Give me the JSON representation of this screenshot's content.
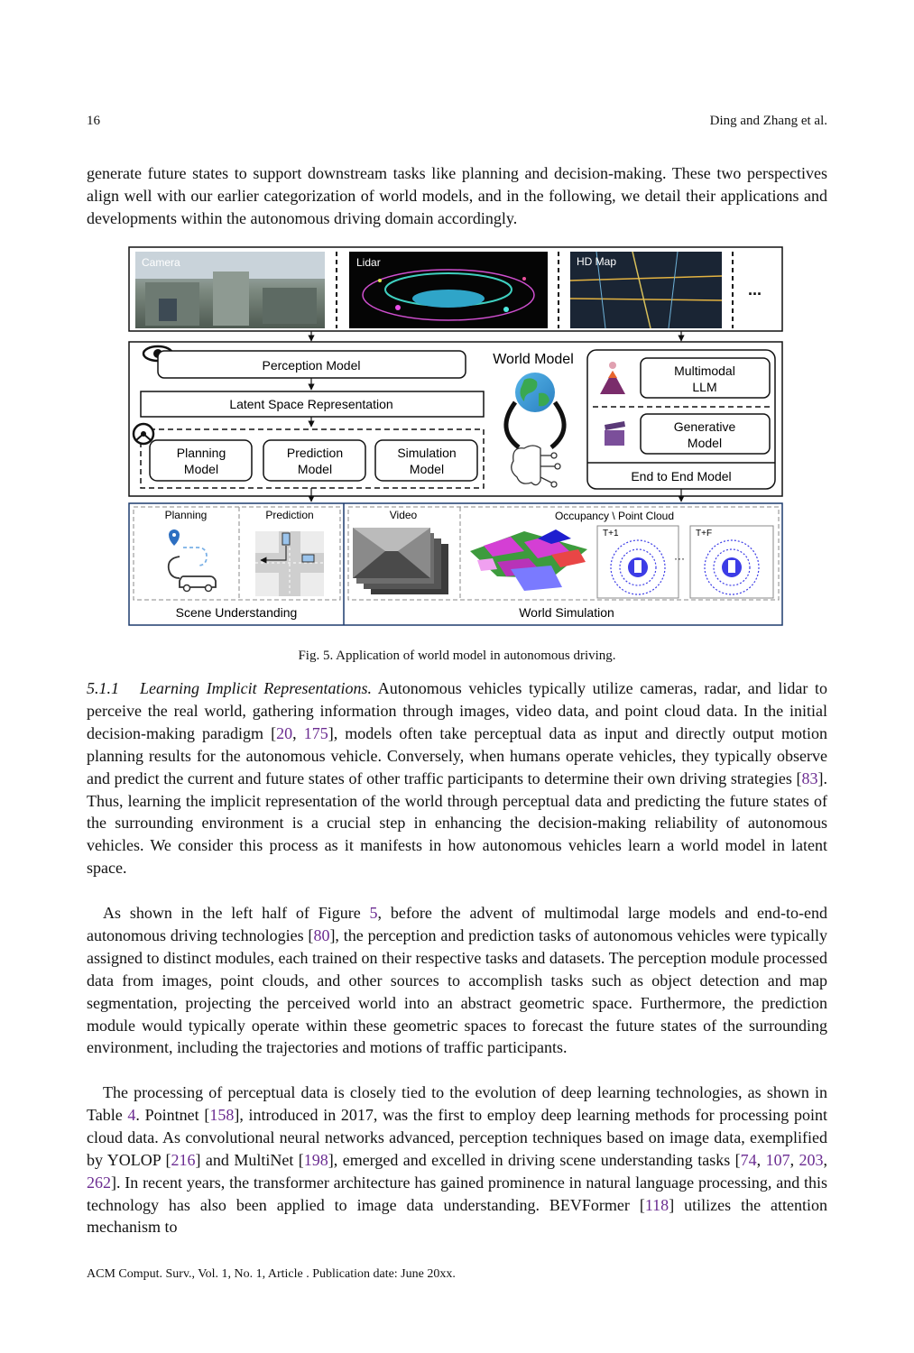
{
  "header": {
    "page_number": "16",
    "authors": "Ding and Zhang et al."
  },
  "intro_paragraph": "generate future states to support downstream tasks like planning and decision-making. These two perspectives align well with our earlier categorization of world models, and in the following, we detail their applications and developments within the autonomous driving domain accordingly.",
  "figure": {
    "inputs": {
      "camera": "Camera",
      "lidar": "Lidar",
      "hd_map": "HD Map",
      "more": "..."
    },
    "world_model_title": "World Model",
    "perception_model": "Perception Model",
    "latent_space": "Latent Space Representation",
    "planning_model_1": "Planning",
    "planning_model_2": "Model",
    "prediction_model_1": "Prediction",
    "prediction_model_2": "Model",
    "simulation_model_1": "Simulation",
    "simulation_model_2": "Model",
    "multimodal_llm_1": "Multimodal",
    "multimodal_llm_2": "LLM",
    "generative_model_1": "Generative",
    "generative_model_2": "Model",
    "end_to_end": "End to End Model",
    "bottom": {
      "planning": "Planning",
      "prediction": "Prediction",
      "video": "Video",
      "occupancy": "Occupancy \\ Point Cloud",
      "t1": "T+1",
      "tf": "T+F",
      "scene_understanding": "Scene Understanding",
      "world_simulation": "World Simulation"
    },
    "caption": "Fig. 5.  Application of world model in autonomous driving."
  },
  "section": {
    "number": "5.1.1",
    "title": "Learning Implicit Representations.",
    "p1_lines": [
      "Autonomous vehicles typically utilize cameras, radar, and",
      "lidar to perceive the real world, gathering information through images, video data, and point",
      "cloud data. In the initial decision-making paradigm [",
      "20",
      ", ",
      "175",
      "], models often take perceptual data",
      "as input and directly output motion planning results for the autonomous vehicle. Conversely,",
      "when humans operate vehicles, they typically observe and predict the current and future states",
      "of other traffic participants to determine their own driving strategies [",
      "83",
      "]. Thus, learning the",
      "implicit representation of the world through perceptual data and predicting the future states of",
      "the surrounding environment is a crucial step in enhancing the decision-making reliability of",
      "autonomous vehicles. We consider this process as it manifests in how autonomous vehicles learn a",
      "world model in latent space."
    ],
    "p2": {
      "a": "As shown in the left half of Figure ",
      "ref5": "5",
      "b": ", before the advent of multimodal large models and end-to-end autonomous driving technologies [",
      "ref80": "80",
      "c": "], the perception and prediction tasks of autonomous vehicles were typically assigned to distinct modules, each trained on their respective tasks and datasets. The perception module processed data from images, point clouds, and other sources to accomplish tasks such as object detection and map segmentation, projecting the perceived world into an abstract geometric space. Furthermore, the prediction module would typically operate within these geometric spaces to forecast the future states of the surrounding environment, including the trajectories and motions of traffic participants."
    },
    "p3": {
      "a": "The processing of perceptual data is closely tied to the evolution of deep learning technologies, as shown in Table ",
      "ref4": "4",
      "b": ". Pointnet [",
      "ref158": "158",
      "c": "], introduced in 2017, was the first to employ deep learning methods for processing point cloud data. As convolutional neural networks advanced, perception techniques based on image data, exemplified by YOLOP [",
      "ref216": "216",
      "d": "] and MultiNet [",
      "ref198": "198",
      "e": "], emerged and excelled in driving scene understanding tasks [",
      "ref74": "74",
      "sep1": ", ",
      "ref107": "107",
      "sep2": ", ",
      "ref203": "203",
      "sep3": ", ",
      "ref262": "262",
      "f": "]. In recent years, the transformer architecture has gained prominence in natural language processing, and this technology has also been applied to image data understanding. BEVFormer [",
      "ref118": "118",
      "g": "] utilizes the attention mechanism to"
    }
  },
  "footer": "ACM Comput. Surv., Vol. 1, No. 1, Article . Publication date: June 20xx."
}
